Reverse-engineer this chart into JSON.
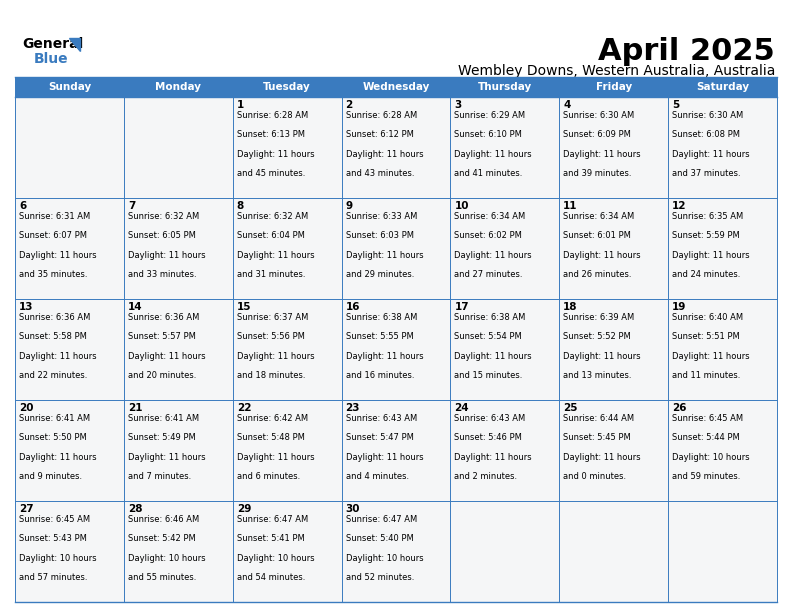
{
  "title": "April 2025",
  "subtitle": "Wembley Downs, Western Australia, Australia",
  "header_bg": "#3a7bbf",
  "header_text_color": "#ffffff",
  "cell_bg": "#f8f9fa",
  "border_color": "#3a7bbf",
  "text_color": "#000000",
  "day_names": [
    "Sunday",
    "Monday",
    "Tuesday",
    "Wednesday",
    "Thursday",
    "Friday",
    "Saturday"
  ],
  "weeks": [
    [
      {
        "day": "",
        "sunrise": "",
        "sunset": "",
        "daylight": ""
      },
      {
        "day": "",
        "sunrise": "",
        "sunset": "",
        "daylight": ""
      },
      {
        "day": "1",
        "sunrise": "6:28 AM",
        "sunset": "6:13 PM",
        "daylight": "11 hours and 45 minutes."
      },
      {
        "day": "2",
        "sunrise": "6:28 AM",
        "sunset": "6:12 PM",
        "daylight": "11 hours and 43 minutes."
      },
      {
        "day": "3",
        "sunrise": "6:29 AM",
        "sunset": "6:10 PM",
        "daylight": "11 hours and 41 minutes."
      },
      {
        "day": "4",
        "sunrise": "6:30 AM",
        "sunset": "6:09 PM",
        "daylight": "11 hours and 39 minutes."
      },
      {
        "day": "5",
        "sunrise": "6:30 AM",
        "sunset": "6:08 PM",
        "daylight": "11 hours and 37 minutes."
      }
    ],
    [
      {
        "day": "6",
        "sunrise": "6:31 AM",
        "sunset": "6:07 PM",
        "daylight": "11 hours and 35 minutes."
      },
      {
        "day": "7",
        "sunrise": "6:32 AM",
        "sunset": "6:05 PM",
        "daylight": "11 hours and 33 minutes."
      },
      {
        "day": "8",
        "sunrise": "6:32 AM",
        "sunset": "6:04 PM",
        "daylight": "11 hours and 31 minutes."
      },
      {
        "day": "9",
        "sunrise": "6:33 AM",
        "sunset": "6:03 PM",
        "daylight": "11 hours and 29 minutes."
      },
      {
        "day": "10",
        "sunrise": "6:34 AM",
        "sunset": "6:02 PM",
        "daylight": "11 hours and 27 minutes."
      },
      {
        "day": "11",
        "sunrise": "6:34 AM",
        "sunset": "6:01 PM",
        "daylight": "11 hours and 26 minutes."
      },
      {
        "day": "12",
        "sunrise": "6:35 AM",
        "sunset": "5:59 PM",
        "daylight": "11 hours and 24 minutes."
      }
    ],
    [
      {
        "day": "13",
        "sunrise": "6:36 AM",
        "sunset": "5:58 PM",
        "daylight": "11 hours and 22 minutes."
      },
      {
        "day": "14",
        "sunrise": "6:36 AM",
        "sunset": "5:57 PM",
        "daylight": "11 hours and 20 minutes."
      },
      {
        "day": "15",
        "sunrise": "6:37 AM",
        "sunset": "5:56 PM",
        "daylight": "11 hours and 18 minutes."
      },
      {
        "day": "16",
        "sunrise": "6:38 AM",
        "sunset": "5:55 PM",
        "daylight": "11 hours and 16 minutes."
      },
      {
        "day": "17",
        "sunrise": "6:38 AM",
        "sunset": "5:54 PM",
        "daylight": "11 hours and 15 minutes."
      },
      {
        "day": "18",
        "sunrise": "6:39 AM",
        "sunset": "5:52 PM",
        "daylight": "11 hours and 13 minutes."
      },
      {
        "day": "19",
        "sunrise": "6:40 AM",
        "sunset": "5:51 PM",
        "daylight": "11 hours and 11 minutes."
      }
    ],
    [
      {
        "day": "20",
        "sunrise": "6:41 AM",
        "sunset": "5:50 PM",
        "daylight": "11 hours and 9 minutes."
      },
      {
        "day": "21",
        "sunrise": "6:41 AM",
        "sunset": "5:49 PM",
        "daylight": "11 hours and 7 minutes."
      },
      {
        "day": "22",
        "sunrise": "6:42 AM",
        "sunset": "5:48 PM",
        "daylight": "11 hours and 6 minutes."
      },
      {
        "day": "23",
        "sunrise": "6:43 AM",
        "sunset": "5:47 PM",
        "daylight": "11 hours and 4 minutes."
      },
      {
        "day": "24",
        "sunrise": "6:43 AM",
        "sunset": "5:46 PM",
        "daylight": "11 hours and 2 minutes."
      },
      {
        "day": "25",
        "sunrise": "6:44 AM",
        "sunset": "5:45 PM",
        "daylight": "11 hours and 0 minutes."
      },
      {
        "day": "26",
        "sunrise": "6:45 AM",
        "sunset": "5:44 PM",
        "daylight": "10 hours and 59 minutes."
      }
    ],
    [
      {
        "day": "27",
        "sunrise": "6:45 AM",
        "sunset": "5:43 PM",
        "daylight": "10 hours and 57 minutes."
      },
      {
        "day": "28",
        "sunrise": "6:46 AM",
        "sunset": "5:42 PM",
        "daylight": "10 hours and 55 minutes."
      },
      {
        "day": "29",
        "sunrise": "6:47 AM",
        "sunset": "5:41 PM",
        "daylight": "10 hours and 54 minutes."
      },
      {
        "day": "30",
        "sunrise": "6:47 AM",
        "sunset": "5:40 PM",
        "daylight": "10 hours and 52 minutes."
      },
      {
        "day": "",
        "sunrise": "",
        "sunset": "",
        "daylight": ""
      },
      {
        "day": "",
        "sunrise": "",
        "sunset": "",
        "daylight": ""
      },
      {
        "day": "",
        "sunrise": "",
        "sunset": "",
        "daylight": ""
      }
    ]
  ]
}
